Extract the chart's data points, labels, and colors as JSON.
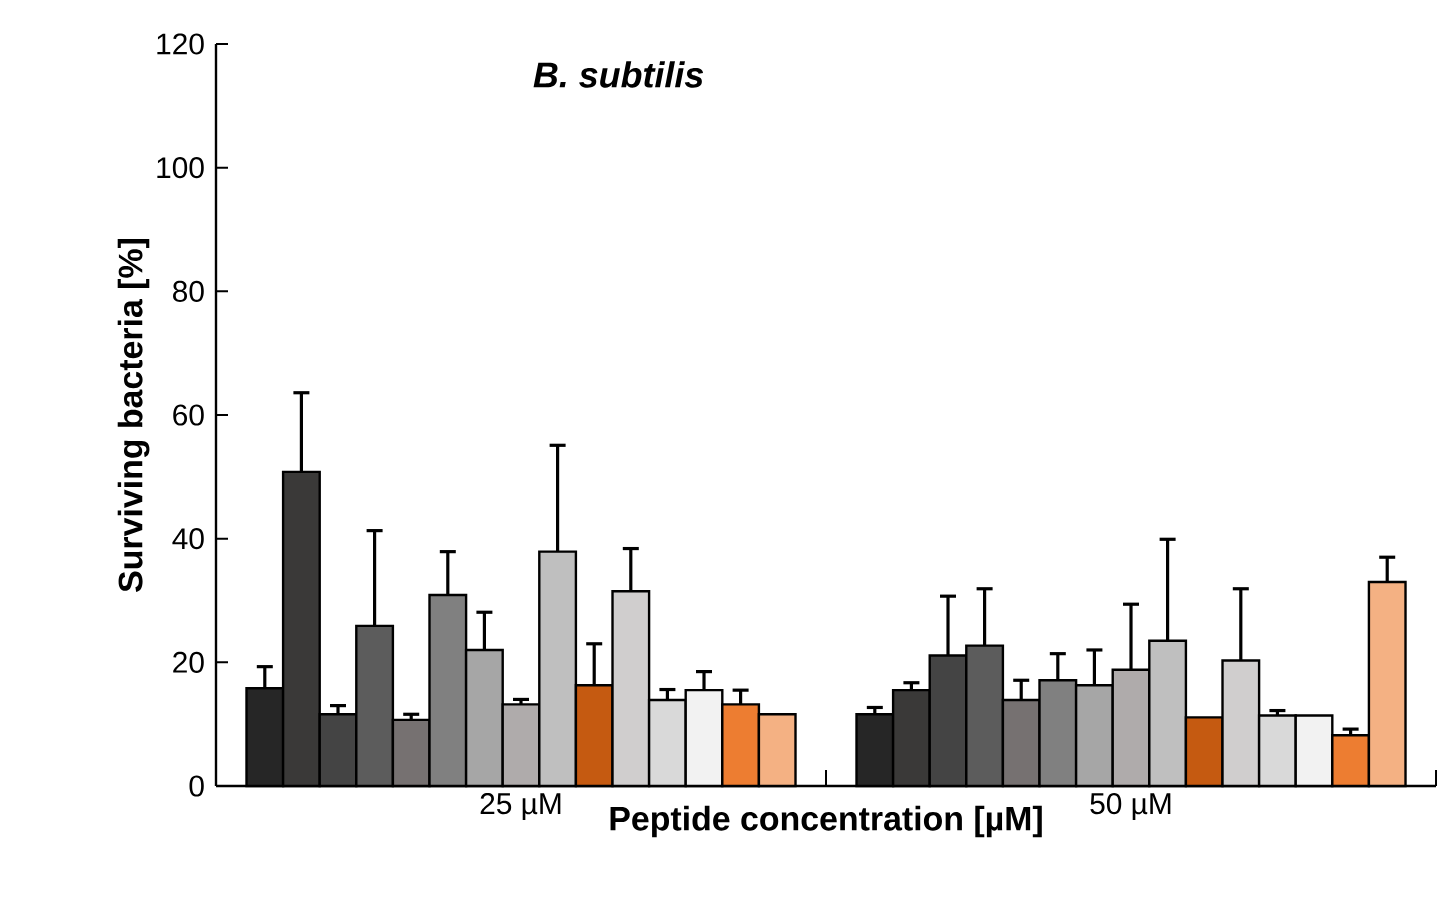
{
  "chart_data": {
    "type": "bar",
    "title": "B. subtilis",
    "xlabel": "Peptide concentration [µM]",
    "ylabel": "Surviving bacteria [%]",
    "categories": [
      "25 µM",
      "50 µM"
    ],
    "ylim": [
      0,
      120
    ],
    "yticks": [
      0,
      20,
      40,
      60,
      80,
      100,
      120
    ],
    "grid": false,
    "series": [
      {
        "color": "#262626",
        "values": [
          15.8,
          11.6
        ],
        "errors": [
          3.5,
          1.1
        ]
      },
      {
        "color": "#3a3938",
        "values": [
          50.8,
          15.5
        ],
        "errors": [
          12.8,
          1.2
        ]
      },
      {
        "color": "#444444",
        "values": [
          11.6,
          21.1
        ],
        "errors": [
          1.4,
          9.6
        ]
      },
      {
        "color": "#5c5c5c",
        "values": [
          25.9,
          22.7
        ],
        "errors": [
          15.4,
          9.2
        ]
      },
      {
        "color": "#767171",
        "values": [
          10.7,
          13.9
        ],
        "errors": [
          0.9,
          3.2
        ]
      },
      {
        "color": "#808080",
        "values": [
          30.9,
          17.1
        ],
        "errors": [
          7.0,
          4.3
        ]
      },
      {
        "color": "#a6a6a6",
        "values": [
          22.0,
          16.3
        ],
        "errors": [
          6.1,
          5.7
        ]
      },
      {
        "color": "#afabab",
        "values": [
          13.2,
          18.8
        ],
        "errors": [
          0.8,
          10.6
        ]
      },
      {
        "color": "#bfbfbf",
        "values": [
          37.9,
          23.5
        ],
        "errors": [
          17.2,
          16.4
        ]
      },
      {
        "color": "#c55a11",
        "values": [
          16.3,
          11.1
        ],
        "errors": [
          6.7,
          null
        ]
      },
      {
        "color": "#d0cece",
        "values": [
          31.5,
          20.3
        ],
        "errors": [
          6.9,
          11.6
        ]
      },
      {
        "color": "#d9d9d9",
        "values": [
          13.9,
          11.4
        ],
        "errors": [
          1.7,
          0.8
        ]
      },
      {
        "color": "#f2f2f2",
        "values": [
          15.5,
          11.4
        ],
        "errors": [
          3.0,
          null
        ]
      },
      {
        "color": "#ed7d31",
        "values": [
          13.2,
          8.2
        ],
        "errors": [
          2.3,
          1.0
        ]
      },
      {
        "color": "#f4b183",
        "values": [
          11.6,
          33.0
        ],
        "errors": [
          null,
          4.0
        ]
      }
    ]
  }
}
